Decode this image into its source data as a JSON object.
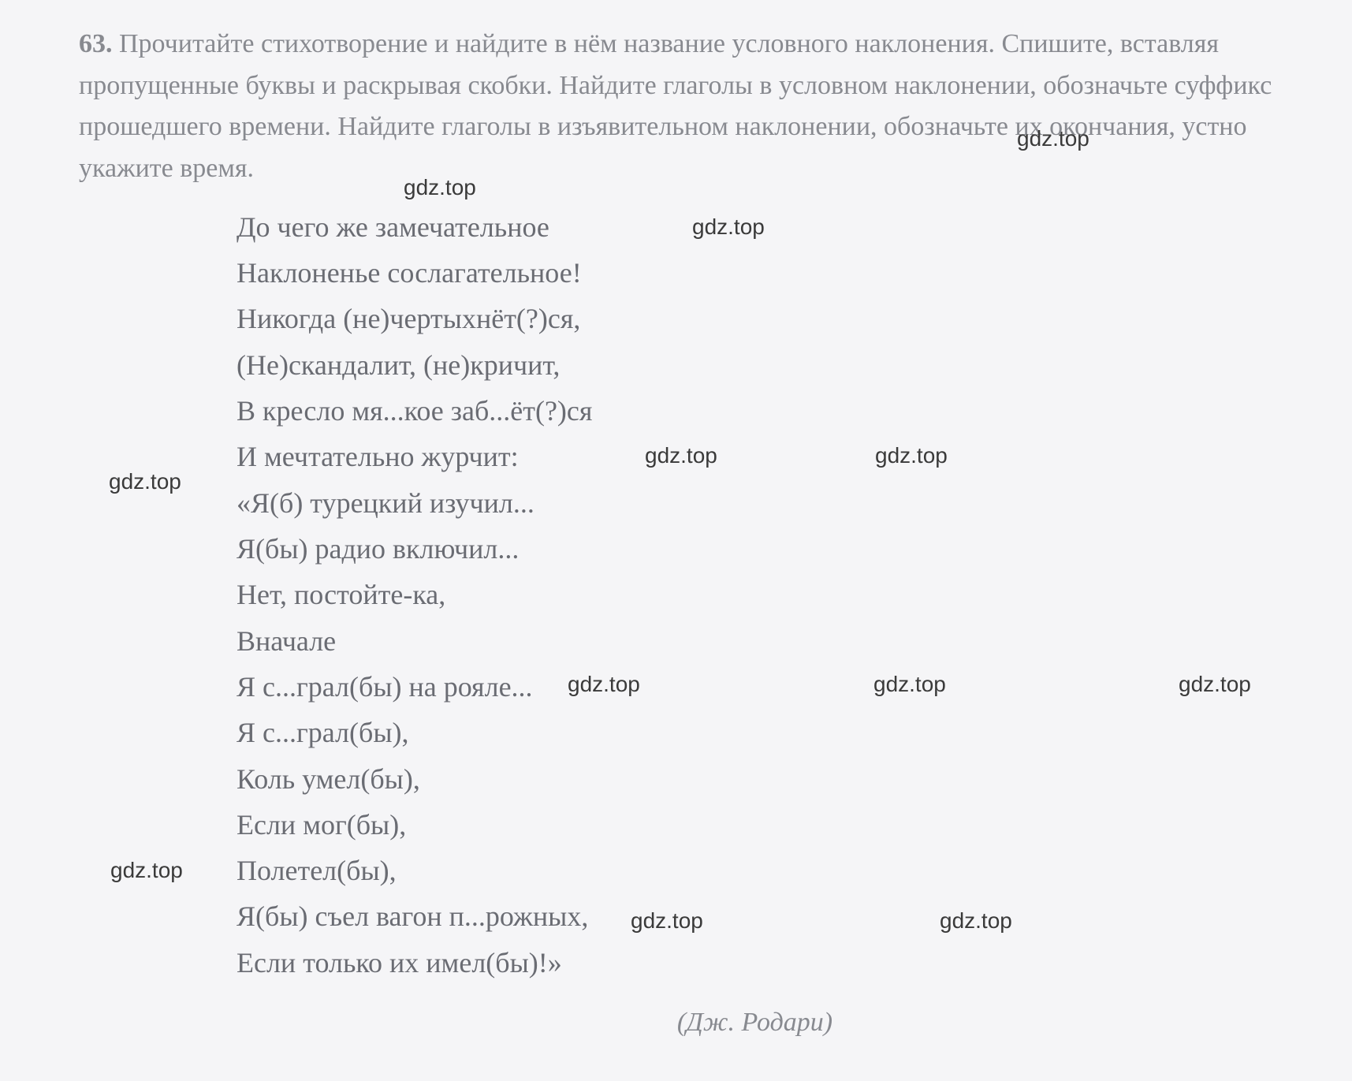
{
  "exercise": {
    "number": "63.",
    "instructions": "Прочитайте стихотворение и найдите в нём название условного наклонения. Спишите, вставляя пропущенные буквы и раскрывая скобки. Найдите глаголы в условном наклонении, обозначьте суффикс прошедшего времени. Найдите глаголы в изъявительном наклонении, обозначьте их окончания, устно укажите время."
  },
  "poem": {
    "lines": [
      "До чего же замечательное",
      "Наклоненье сослагательное!",
      "Никогда (не)чертыхнёт(?)ся,",
      "(Не)скандалит, (не)кричит,",
      "В кресло мя...кое заб...ёт(?)ся",
      "И мечтательно журчит:",
      "«Я(б) турецкий изучил...",
      "Я(бы) радио включил...",
      "Нет, постойте-ка,",
      "Вначале",
      "Я с...грал(бы) на рояле...",
      "Я с...грал(бы),",
      "Коль умел(бы),",
      "Если мог(бы),",
      "Полетел(бы),",
      "Я(бы) съел вагон п...рожных,",
      "Если только их имел(бы)!»"
    ],
    "author": "(Дж. Родари)"
  },
  "watermark": {
    "text": "gdz.top"
  },
  "colors": {
    "background": "#f5f5f7",
    "instruction_text": "#888a90",
    "poem_text": "#6a6c73",
    "watermark_text": "#3a3a3a"
  },
  "typography": {
    "instruction_fontsize": 34,
    "poem_fontsize": 36,
    "watermark_fontsize": 28,
    "font_family": "Georgia, Times New Roman, serif"
  }
}
